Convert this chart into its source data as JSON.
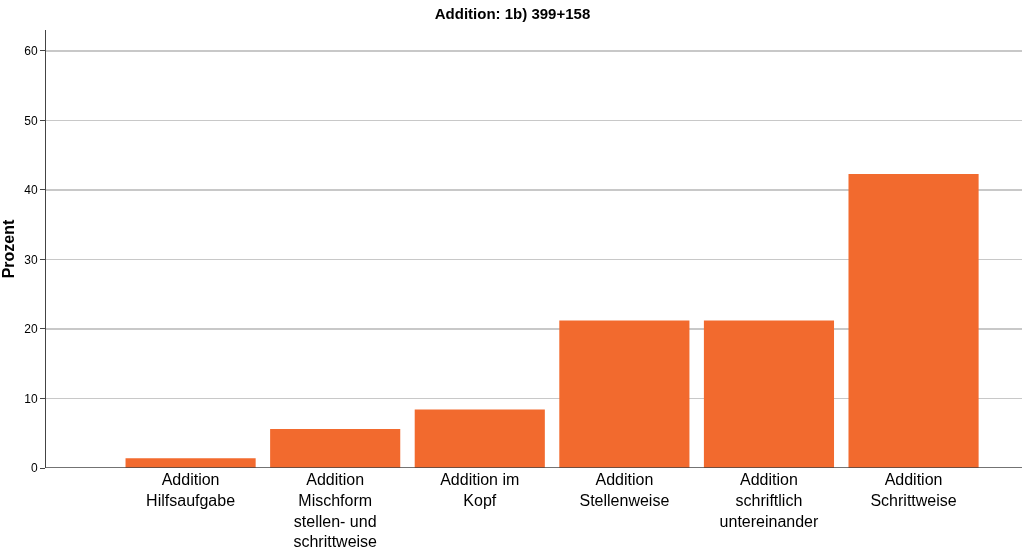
{
  "chart_data": {
    "type": "bar",
    "title": "Addition: 1b) 399+158",
    "ylabel": "Prozent",
    "categories": [
      "Addition Hilfsaufgabe",
      "Addition Mischform stellen- und schrittweise",
      "Addition im Kopf",
      "Addition Stellenweise",
      "Addition schriftlich untereinander",
      "Addition Schrittweise"
    ],
    "values": [
      1.4,
      5.6,
      8.4,
      21.2,
      21.2,
      42.3
    ],
    "color": "#f26a2e",
    "ylim": [
      0,
      63
    ],
    "yticks": [
      0,
      10,
      20,
      30,
      40,
      50,
      60
    ],
    "grid": "y"
  }
}
